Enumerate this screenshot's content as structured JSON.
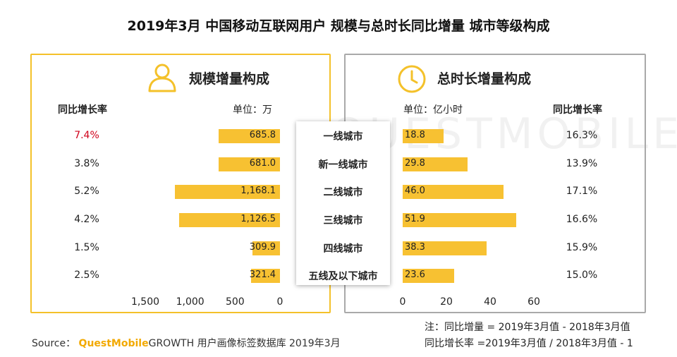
{
  "title": "2019年3月 中国移动互联网用户 规模与总时长同比增量 城市等级构成",
  "left_panel": {
    "title": "规模增量构成",
    "rate_header": "同比增长率",
    "unit": "单位：万",
    "icon": "user-icon",
    "accent": "#F4C12A"
  },
  "right_panel": {
    "title": "总时长增量构成",
    "rate_header": "同比增长率",
    "unit": "单位：亿小时",
    "icon": "clock-icon",
    "accent": "#A9A9A9"
  },
  "watermark": "QUESTMOBILE",
  "chart_data": [
    {
      "type": "bar",
      "orientation": "horizontal-left",
      "categories": [
        "一线城市",
        "新一线城市",
        "二线城市",
        "三线城市",
        "四线城市",
        "五线及以下城市"
      ],
      "values": [
        685.8,
        681.0,
        1168.1,
        1126.5,
        309.9,
        321.4
      ],
      "value_labels": [
        "685.8",
        "681.0",
        "1,168.1",
        "1,126.5",
        "309.9",
        "321.4"
      ],
      "rates": [
        "7.4%",
        "3.8%",
        "5.2%",
        "4.2%",
        "1.5%",
        "2.5%"
      ],
      "xlim": [
        0,
        1500
      ],
      "ticks": [
        {
          "v": 1500,
          "label": "1,500"
        },
        {
          "v": 1000,
          "label": "1,000"
        },
        {
          "v": 500,
          "label": "500"
        },
        {
          "v": 0,
          "label": "0"
        }
      ],
      "bar_color": "#F7C132",
      "highlight_rate_color": "#D0021B"
    },
    {
      "type": "bar",
      "orientation": "horizontal-right",
      "categories": [
        "一线城市",
        "新一线城市",
        "二线城市",
        "三线城市",
        "四线城市",
        "五线及以下城市"
      ],
      "values": [
        18.8,
        29.8,
        46.0,
        51.9,
        38.3,
        23.6
      ],
      "value_labels": [
        "18.8",
        "29.8",
        "46.0",
        "51.9",
        "38.3",
        "23.6"
      ],
      "rates": [
        "16.3%",
        "13.9%",
        "17.1%",
        "16.6%",
        "15.9%",
        "15.0%"
      ],
      "xlim": [
        0,
        60
      ],
      "ticks": [
        {
          "v": 0,
          "label": "0"
        },
        {
          "v": 20,
          "label": "20"
        },
        {
          "v": 40,
          "label": "40"
        },
        {
          "v": 60,
          "label": "60"
        }
      ],
      "bar_color": "#F7C132"
    }
  ],
  "notes": {
    "line1": "注：同比增量 = 2019年3月值 - 2018年3月值",
    "line2": "同比增长率 =2019年3月值 / 2018年3月值 - 1"
  },
  "source": {
    "prefix": "Source：",
    "brand": "QuestMobile",
    "rest": "GROWTH 用户画像标签数据库 2019年3月"
  }
}
